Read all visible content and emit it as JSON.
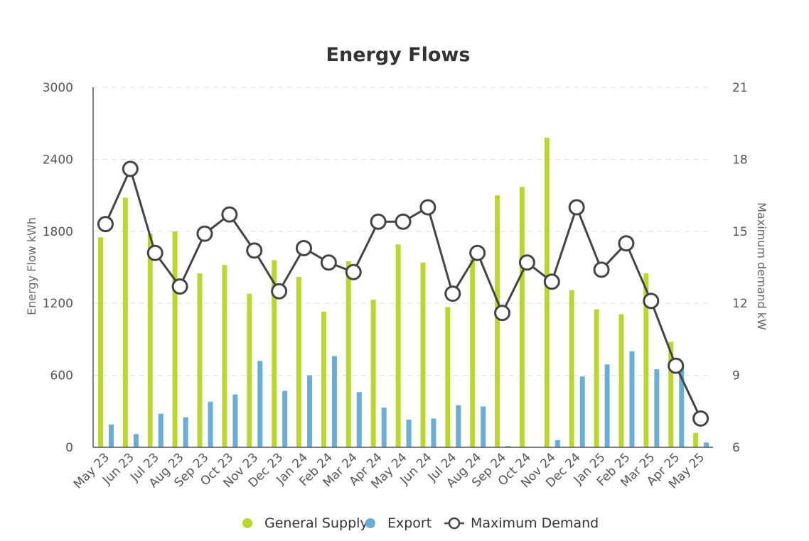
{
  "chart_data": {
    "type": "bar",
    "title": "Energy Flows",
    "categories": [
      "May 23",
      "Jun 23",
      "Jul 23",
      "Aug 23",
      "Sep 23",
      "Oct 23",
      "Nov 23",
      "Dec 23",
      "Jan 24",
      "Feb 24",
      "Mar 24",
      "Apr 24",
      "May 24",
      "Jun 24",
      "Jul 24",
      "Aug 24",
      "Sep 24",
      "Oct 24",
      "Nov 24",
      "Dec 24",
      "Jan 25",
      "Feb 25",
      "Mar 25",
      "Apr 25",
      "May 25"
    ],
    "y_left": {
      "label": "Energy Flow kWh",
      "min": 0,
      "max": 3000,
      "ticks": [
        "0",
        "600",
        "1200",
        "1800",
        "2400",
        "3000"
      ]
    },
    "y_right": {
      "label": "Maximum demand kW",
      "min": 6,
      "max": 21,
      "ticks": [
        "6",
        "9",
        "12",
        "15",
        "18",
        "21"
      ]
    },
    "series": [
      {
        "name": "General Supply",
        "type": "bar",
        "axis": "left",
        "color": "#bcd631",
        "values": [
          1750,
          2080,
          1780,
          1800,
          1450,
          1520,
          1280,
          1560,
          1420,
          1130,
          1550,
          1230,
          1690,
          1540,
          1170,
          1570,
          2100,
          2170,
          2580,
          1310,
          1150,
          1110,
          1450,
          880,
          120
        ]
      },
      {
        "name": "Export",
        "type": "bar",
        "axis": "left",
        "color": "#6aaed6",
        "values": [
          190,
          110,
          280,
          250,
          380,
          440,
          720,
          470,
          600,
          760,
          460,
          330,
          230,
          240,
          350,
          340,
          10,
          0,
          60,
          590,
          690,
          800,
          650,
          680,
          40
        ]
      },
      {
        "name": "Maximum Demand",
        "type": "line",
        "axis": "right",
        "color": "#444444",
        "values": [
          15.3,
          17.6,
          14.1,
          12.7,
          14.9,
          15.7,
          14.2,
          12.5,
          14.3,
          13.7,
          13.3,
          15.4,
          15.4,
          16.0,
          12.4,
          14.1,
          11.6,
          13.7,
          12.9,
          16.0,
          13.4,
          14.5,
          12.1,
          9.4,
          7.2
        ]
      }
    ],
    "legend": {
      "position": "bottom-center",
      "items": [
        "General Supply",
        "Export",
        "Maximum Demand"
      ]
    },
    "grid": true
  }
}
